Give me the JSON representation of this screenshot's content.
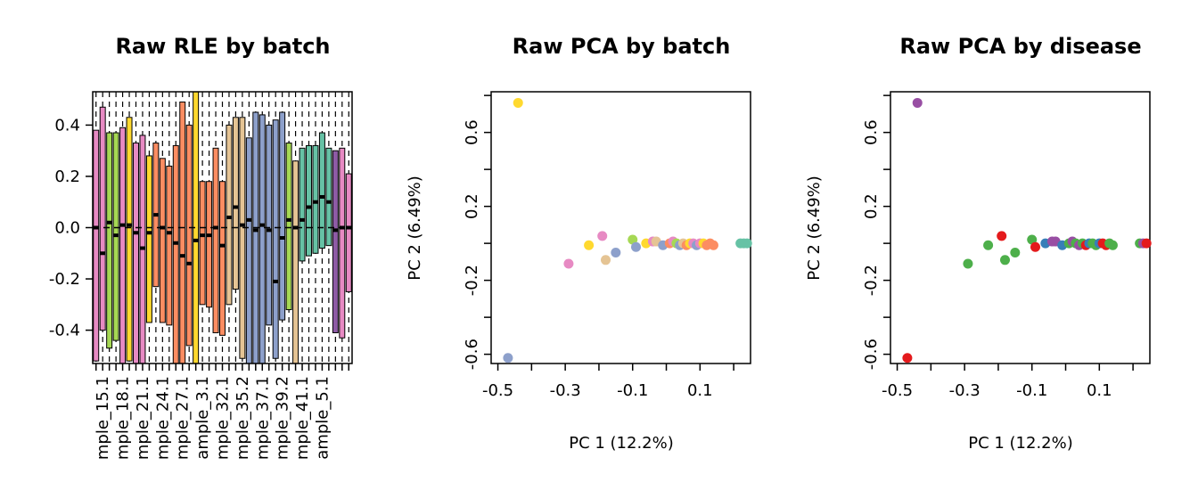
{
  "chart_data": [
    {
      "type": "boxplot",
      "title": "Raw RLE by batch",
      "xlabel": "",
      "ylabel": "",
      "ylim": [
        -0.53,
        0.53
      ],
      "yticks": [
        "0.4",
        "0.2",
        "0.0",
        "-0.2",
        "-0.4"
      ],
      "ytick_values": [
        0.4,
        0.2,
        0.0,
        -0.2,
        -0.4
      ],
      "xtick_labels": [
        "mple_15.1",
        "mple_18.1",
        "mple_21.1",
        "mple_24.1",
        "mple_27.1",
        "ample_3.1",
        "mple_32.1",
        "mple_35.2",
        "mple_37.1",
        "mple_39.2",
        "mple_41.1",
        "ample_5.1"
      ],
      "boxes": [
        {
          "low": -0.52,
          "high": 0.38,
          "median": 0.0,
          "color": "#E78AC3"
        },
        {
          "low": -0.4,
          "high": 0.47,
          "median": -0.1,
          "color": "#E78AC3"
        },
        {
          "low": -0.47,
          "high": 0.37,
          "median": 0.02,
          "color": "#A6D854"
        },
        {
          "low": -0.44,
          "high": 0.37,
          "median": -0.03,
          "color": "#A6D854"
        },
        {
          "low": -0.53,
          "high": 0.39,
          "median": 0.01,
          "color": "#E78AC3"
        },
        {
          "low": -0.52,
          "high": 0.43,
          "median": 0.01,
          "color": "#FFD92F"
        },
        {
          "low": -0.53,
          "high": 0.33,
          "median": -0.02,
          "color": "#E78AC3"
        },
        {
          "low": -0.53,
          "high": 0.36,
          "median": -0.08,
          "color": "#E78AC3"
        },
        {
          "low": -0.37,
          "high": 0.28,
          "median": -0.02,
          "color": "#FFD92F"
        },
        {
          "low": -0.23,
          "high": 0.33,
          "median": 0.05,
          "color": "#FC8D62"
        },
        {
          "low": -0.37,
          "high": 0.27,
          "median": 0.0,
          "color": "#FC8D62"
        },
        {
          "low": -0.38,
          "high": 0.24,
          "median": -0.02,
          "color": "#FC8D62"
        },
        {
          "low": -0.53,
          "high": 0.32,
          "median": -0.06,
          "color": "#FC8D62"
        },
        {
          "low": -0.53,
          "high": 0.49,
          "median": -0.11,
          "color": "#FC8D62"
        },
        {
          "low": -0.46,
          "high": 0.4,
          "median": -0.14,
          "color": "#FC8D62"
        },
        {
          "low": -0.53,
          "high": 0.53,
          "median": -0.05,
          "color": "#FFD92F"
        },
        {
          "low": -0.3,
          "high": 0.18,
          "median": -0.03,
          "color": "#FC8D62"
        },
        {
          "low": -0.31,
          "high": 0.18,
          "median": -0.03,
          "color": "#FC8D62"
        },
        {
          "low": -0.41,
          "high": 0.31,
          "median": 0.0,
          "color": "#FC8D62"
        },
        {
          "low": -0.42,
          "high": 0.18,
          "median": -0.07,
          "color": "#FC8D62"
        },
        {
          "low": -0.3,
          "high": 0.4,
          "median": 0.04,
          "color": "#E5C494"
        },
        {
          "low": -0.24,
          "high": 0.43,
          "median": 0.08,
          "color": "#E5C494"
        },
        {
          "low": -0.51,
          "high": 0.43,
          "median": 0.01,
          "color": "#E5C494"
        },
        {
          "low": -0.53,
          "high": 0.35,
          "median": 0.03,
          "color": "#8DA0CB"
        },
        {
          "low": -0.53,
          "high": 0.45,
          "median": -0.01,
          "color": "#8DA0CB"
        },
        {
          "low": -0.53,
          "high": 0.44,
          "median": 0.01,
          "color": "#8DA0CB"
        },
        {
          "low": -0.38,
          "high": 0.4,
          "median": -0.01,
          "color": "#8DA0CB"
        },
        {
          "low": -0.51,
          "high": 0.42,
          "median": -0.21,
          "color": "#8DA0CB"
        },
        {
          "low": -0.36,
          "high": 0.45,
          "median": -0.04,
          "color": "#8DA0CB"
        },
        {
          "low": -0.32,
          "high": 0.33,
          "median": 0.03,
          "color": "#A6D854"
        },
        {
          "low": -0.53,
          "high": 0.26,
          "median": 0.0,
          "color": "#E5C494"
        },
        {
          "low": -0.13,
          "high": 0.31,
          "median": 0.03,
          "color": "#66C2A5"
        },
        {
          "low": -0.11,
          "high": 0.32,
          "median": 0.08,
          "color": "#66C2A5"
        },
        {
          "low": -0.1,
          "high": 0.32,
          "median": 0.1,
          "color": "#66C2A5"
        },
        {
          "low": -0.08,
          "high": 0.37,
          "median": 0.12,
          "color": "#66C2A5"
        },
        {
          "low": -0.07,
          "high": 0.31,
          "median": 0.1,
          "color": "#66C2A5"
        },
        {
          "low": -0.41,
          "high": 0.3,
          "median": -0.01,
          "color": "#8E5BA6"
        },
        {
          "low": -0.43,
          "high": 0.31,
          "median": 0.0,
          "color": "#E78AC3"
        },
        {
          "low": -0.25,
          "high": 0.21,
          "median": 0.0,
          "color": "#E78AC3"
        }
      ],
      "hline": 0
    },
    {
      "type": "scatter",
      "title": "Raw PCA by batch",
      "xlabel": "PC 1 (12.2%)",
      "ylabel": "PC 2 (6.49%)",
      "xlim": [
        -0.52,
        0.25
      ],
      "ylim": [
        -0.65,
        0.82
      ],
      "xticks": [
        "-0.5",
        "-0.3",
        "-0.1",
        "0.1"
      ],
      "xtick_values": [
        -0.5,
        -0.3,
        -0.1,
        0.1
      ],
      "yticks": [
        "-0.6",
        "-0.2",
        "0.2",
        "0.6"
      ],
      "ytick_values": [
        -0.6,
        -0.2,
        0.2,
        0.6
      ],
      "points": [
        {
          "x": -0.47,
          "y": -0.62,
          "color": "#8DA0CB"
        },
        {
          "x": -0.44,
          "y": 0.76,
          "color": "#FFD92F"
        },
        {
          "x": -0.29,
          "y": -0.11,
          "color": "#E78AC3"
        },
        {
          "x": -0.23,
          "y": -0.01,
          "color": "#FFD92F"
        },
        {
          "x": -0.19,
          "y": 0.04,
          "color": "#E78AC3"
        },
        {
          "x": -0.18,
          "y": -0.09,
          "color": "#E5C494"
        },
        {
          "x": -0.15,
          "y": -0.05,
          "color": "#8DA0CB"
        },
        {
          "x": -0.1,
          "y": 0.02,
          "color": "#A6D854"
        },
        {
          "x": -0.09,
          "y": -0.02,
          "color": "#8DA0CB"
        },
        {
          "x": -0.06,
          "y": 0.0,
          "color": "#FFD92F"
        },
        {
          "x": -0.04,
          "y": 0.01,
          "color": "#E78AC3"
        },
        {
          "x": -0.03,
          "y": 0.01,
          "color": "#E5C494"
        },
        {
          "x": -0.01,
          "y": -0.01,
          "color": "#8DA0CB"
        },
        {
          "x": 0.01,
          "y": 0.0,
          "color": "#FC8D62"
        },
        {
          "x": 0.02,
          "y": 0.01,
          "color": "#E78AC3"
        },
        {
          "x": 0.03,
          "y": 0.0,
          "color": "#A6D854"
        },
        {
          "x": 0.04,
          "y": -0.01,
          "color": "#8DA0CB"
        },
        {
          "x": 0.05,
          "y": 0.0,
          "color": "#E5C494"
        },
        {
          "x": 0.06,
          "y": -0.01,
          "color": "#FC8D62"
        },
        {
          "x": 0.07,
          "y": 0.0,
          "color": "#FFD92F"
        },
        {
          "x": 0.08,
          "y": 0.0,
          "color": "#E78AC3"
        },
        {
          "x": 0.09,
          "y": -0.01,
          "color": "#8DA0CB"
        },
        {
          "x": 0.1,
          "y": 0.0,
          "color": "#E78AC3"
        },
        {
          "x": 0.11,
          "y": 0.0,
          "color": "#FFD92F"
        },
        {
          "x": 0.12,
          "y": -0.01,
          "color": "#FC8D62"
        },
        {
          "x": 0.13,
          "y": 0.0,
          "color": "#FC8D62"
        },
        {
          "x": 0.14,
          "y": -0.01,
          "color": "#FC8D62"
        },
        {
          "x": 0.22,
          "y": 0.0,
          "color": "#66C2A5"
        },
        {
          "x": 0.23,
          "y": 0.0,
          "color": "#66C2A5"
        },
        {
          "x": 0.24,
          "y": 0.0,
          "color": "#66C2A5"
        }
      ]
    },
    {
      "type": "scatter",
      "title": "Raw PCA by disease",
      "xlabel": "PC 1 (12.2%)",
      "ylabel": "PC 2 (6.49%)",
      "xlim": [
        -0.52,
        0.25
      ],
      "ylim": [
        -0.65,
        0.82
      ],
      "xticks": [
        "-0.5",
        "-0.3",
        "-0.1",
        "0.1"
      ],
      "xtick_values": [
        -0.5,
        -0.3,
        -0.1,
        0.1
      ],
      "yticks": [
        "-0.6",
        "-0.2",
        "0.2",
        "0.6"
      ],
      "ytick_values": [
        -0.6,
        -0.2,
        0.2,
        0.6
      ],
      "points": [
        {
          "x": -0.47,
          "y": -0.62,
          "color": "#E41A1C"
        },
        {
          "x": -0.44,
          "y": 0.76,
          "color": "#984EA3"
        },
        {
          "x": -0.29,
          "y": -0.11,
          "color": "#4DAF4A"
        },
        {
          "x": -0.23,
          "y": -0.01,
          "color": "#4DAF4A"
        },
        {
          "x": -0.19,
          "y": 0.04,
          "color": "#E41A1C"
        },
        {
          "x": -0.18,
          "y": -0.09,
          "color": "#4DAF4A"
        },
        {
          "x": -0.15,
          "y": -0.05,
          "color": "#4DAF4A"
        },
        {
          "x": -0.1,
          "y": 0.02,
          "color": "#4DAF4A"
        },
        {
          "x": -0.09,
          "y": -0.02,
          "color": "#E41A1C"
        },
        {
          "x": -0.06,
          "y": 0.0,
          "color": "#377EB8"
        },
        {
          "x": -0.04,
          "y": 0.01,
          "color": "#984EA3"
        },
        {
          "x": -0.03,
          "y": 0.01,
          "color": "#984EA3"
        },
        {
          "x": -0.01,
          "y": -0.01,
          "color": "#377EB8"
        },
        {
          "x": 0.01,
          "y": 0.0,
          "color": "#4DAF4A"
        },
        {
          "x": 0.02,
          "y": 0.01,
          "color": "#984EA3"
        },
        {
          "x": 0.03,
          "y": 0.0,
          "color": "#4DAF4A"
        },
        {
          "x": 0.04,
          "y": -0.01,
          "color": "#984EA3"
        },
        {
          "x": 0.05,
          "y": 0.0,
          "color": "#4DAF4A"
        },
        {
          "x": 0.06,
          "y": -0.01,
          "color": "#E41A1C"
        },
        {
          "x": 0.07,
          "y": 0.0,
          "color": "#377EB8"
        },
        {
          "x": 0.08,
          "y": 0.0,
          "color": "#4DAF4A"
        },
        {
          "x": 0.09,
          "y": -0.01,
          "color": "#4DAF4A"
        },
        {
          "x": 0.1,
          "y": 0.0,
          "color": "#377EB8"
        },
        {
          "x": 0.11,
          "y": 0.0,
          "color": "#E41A1C"
        },
        {
          "x": 0.12,
          "y": -0.01,
          "color": "#E41A1C"
        },
        {
          "x": 0.13,
          "y": 0.0,
          "color": "#4DAF4A"
        },
        {
          "x": 0.14,
          "y": -0.01,
          "color": "#4DAF4A"
        },
        {
          "x": 0.22,
          "y": 0.0,
          "color": "#4DAF4A"
        },
        {
          "x": 0.23,
          "y": 0.0,
          "color": "#984EA3"
        },
        {
          "x": 0.24,
          "y": 0.0,
          "color": "#E41A1C"
        }
      ]
    }
  ]
}
